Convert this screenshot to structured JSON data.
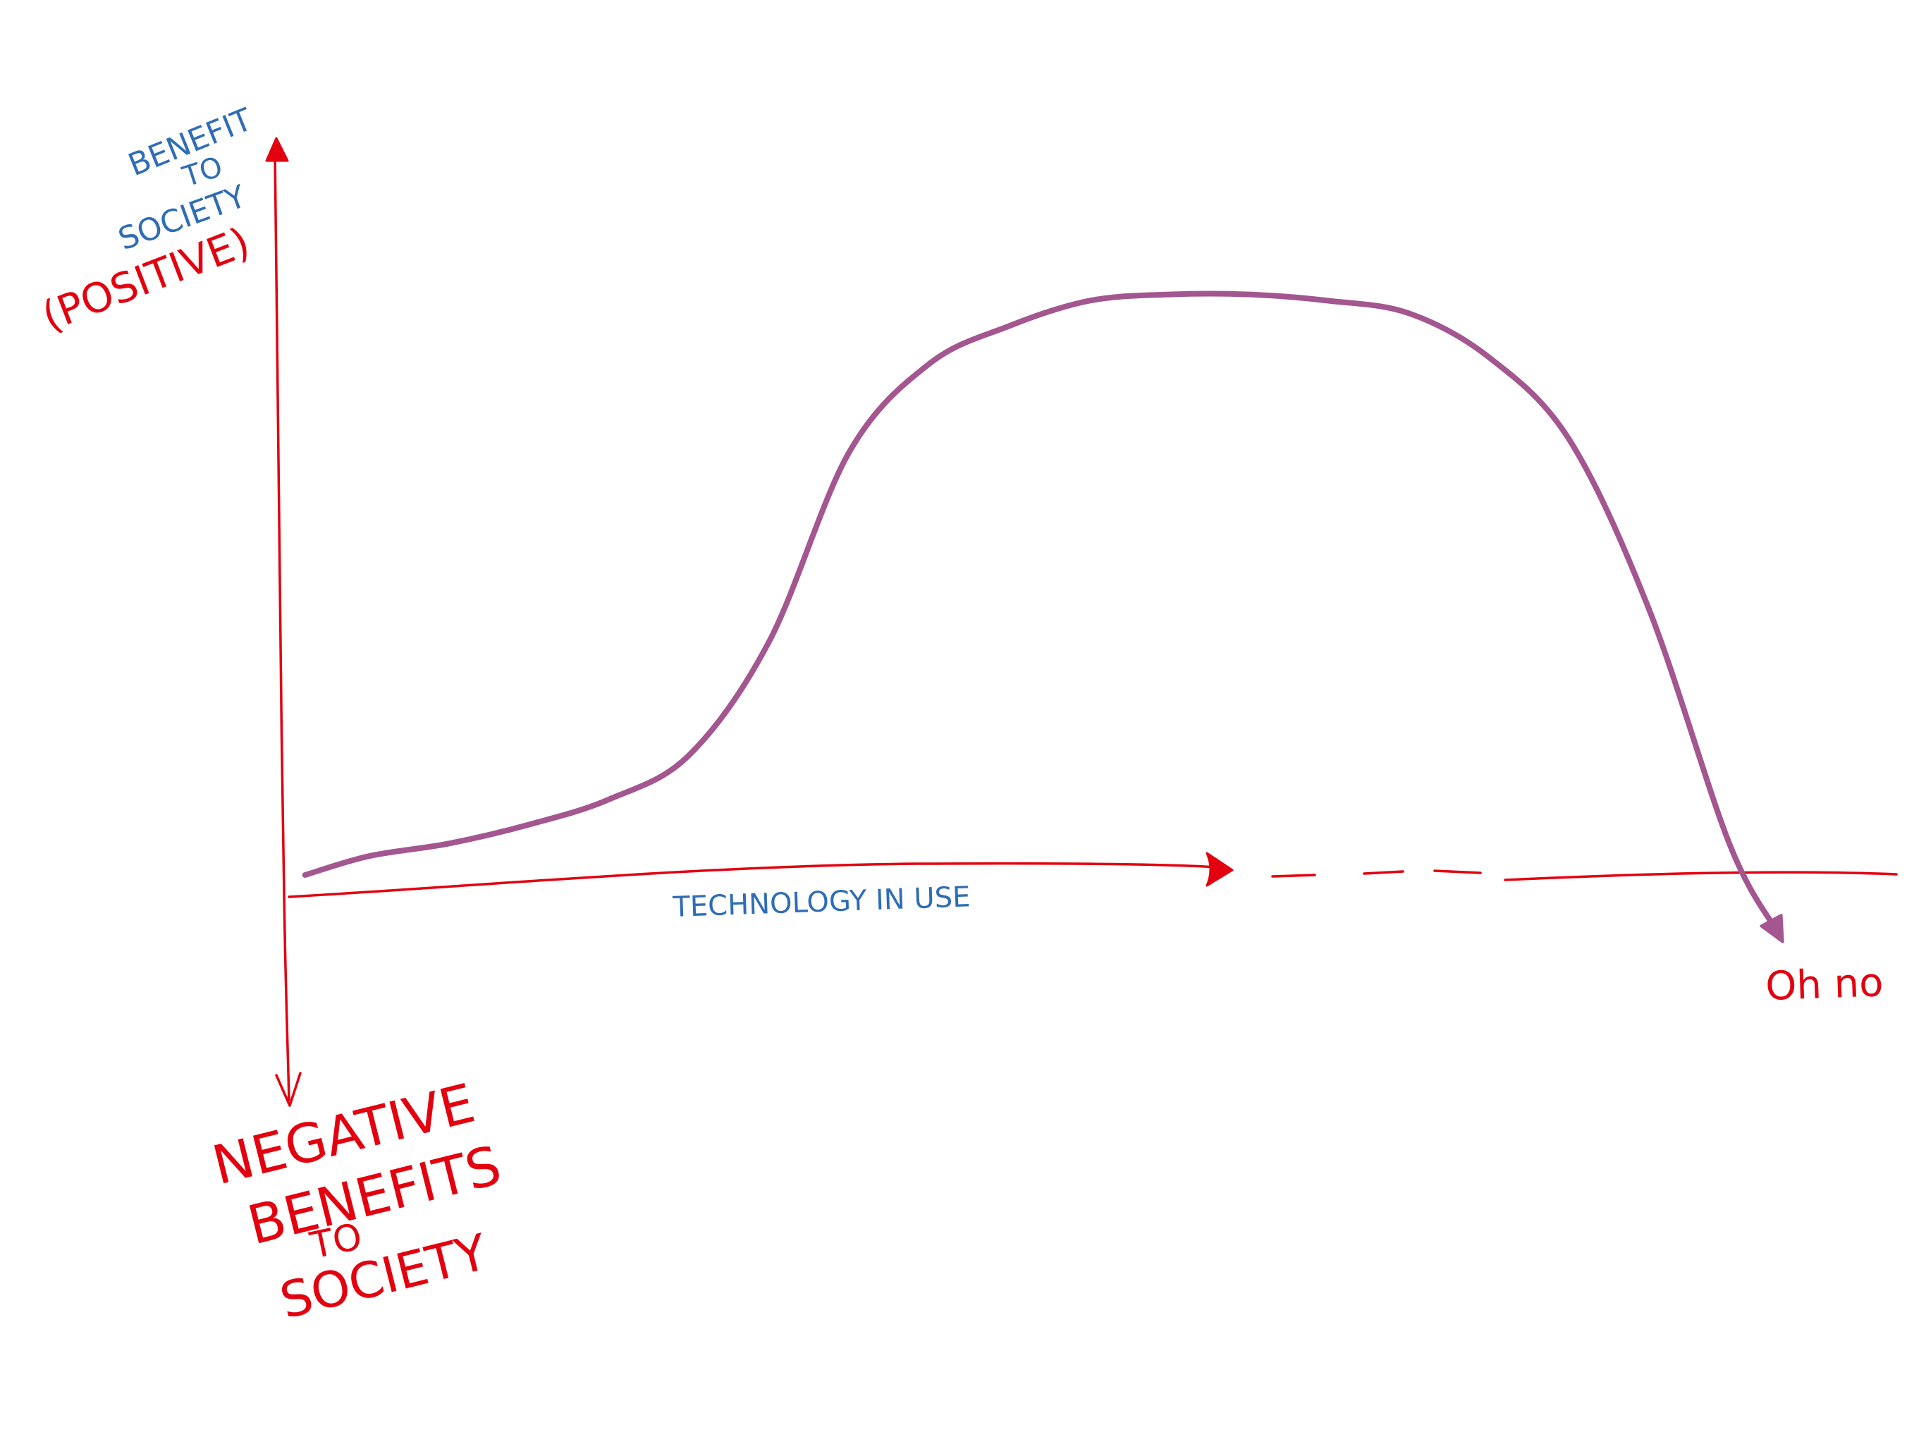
{
  "chart_data": {
    "type": "line",
    "title": "",
    "xlabel": "TECHNOLOGY IN USE",
    "ylabel_positive": [
      "BENEFIT",
      "TO",
      "SOCIETY"
    ],
    "ylabel_positive_qualifier": "(POSITIVE)",
    "ylabel_negative": [
      "NEGATIVE",
      "BENEFITS",
      "TO",
      "SOCIETY"
    ],
    "annotation": "Oh no",
    "xlim": [
      0,
      10
    ],
    "ylim": [
      -1,
      10
    ],
    "grid": false,
    "legend": "none",
    "colors": {
      "axes": "#e3000f",
      "curve": "#a3568f",
      "label_blue": "#2f6db5",
      "label_red": "#e3000f"
    },
    "series": [
      {
        "x": [
          0.1,
          0.5,
          1.0,
          1.5,
          2.0,
          2.5,
          3.0,
          3.5,
          4.0,
          4.5,
          5.0,
          5.5,
          6.0,
          6.5,
          7.0,
          7.5,
          8.0,
          8.5,
          9.0,
          9.3
        ],
        "values": [
          0.1,
          0.4,
          0.6,
          0.9,
          1.3,
          2.0,
          3.8,
          6.8,
          8.2,
          8.8,
          9.2,
          9.3,
          9.3,
          9.2,
          9.0,
          8.3,
          7.0,
          4.3,
          0.6,
          -0.8
        ]
      }
    ]
  }
}
